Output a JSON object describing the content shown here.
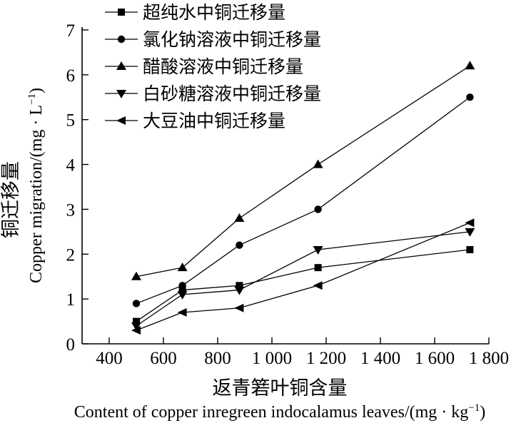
{
  "chart_data": {
    "type": "line",
    "x_label_cn": "返青箬叶铜含量",
    "x_label_en": "Content of copper inregreen indocalamus leaves/(mg · kg",
    "x_label_en_sup": "−1",
    "x_label_en_end": ")",
    "y_label_cn": "铜迁移量",
    "y_label_en": "Copper migration/(mg · L",
    "y_label_en_sup": "−1",
    "y_label_en_end": ")",
    "xlim": [
      300,
      1800
    ],
    "ylim": [
      0,
      7
    ],
    "x_ticks": [
      400,
      600,
      800,
      1000,
      1200,
      1400,
      1600,
      1800
    ],
    "x_tick_labels": [
      "400",
      "600",
      "800",
      "1 000",
      "1 200",
      "1 400",
      "1 600",
      "1 800"
    ],
    "y_ticks": [
      0,
      1,
      2,
      3,
      4,
      5,
      6,
      7
    ],
    "y_tick_labels": [
      "0",
      "1",
      "2",
      "3",
      "4",
      "5",
      "6",
      "7"
    ],
    "x": [
      500,
      670,
      880,
      1170,
      1730
    ],
    "legend_position": "top-left",
    "series": [
      {
        "name": "超纯水中铜迁移量",
        "marker": "square",
        "values": [
          0.5,
          1.2,
          1.3,
          1.7,
          2.1
        ]
      },
      {
        "name": "氯化钠溶液中铜迁移量",
        "marker": "circle",
        "values": [
          0.9,
          1.3,
          2.2,
          3.0,
          5.5
        ]
      },
      {
        "name": "醋酸溶液中铜迁移量",
        "marker": "triangle-up",
        "values": [
          1.5,
          1.7,
          2.8,
          4.0,
          6.2
        ]
      },
      {
        "name": "白砂糖溶液中铜迁移量",
        "marker": "triangle-down",
        "values": [
          0.4,
          1.1,
          1.2,
          2.1,
          2.5
        ]
      },
      {
        "name": "大豆油中铜迁移量",
        "marker": "triangle-left",
        "values": [
          0.3,
          0.7,
          0.8,
          1.3,
          2.7
        ]
      }
    ]
  }
}
